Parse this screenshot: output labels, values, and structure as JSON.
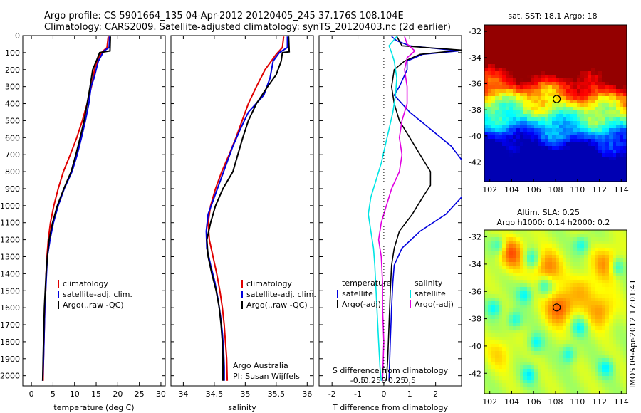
{
  "header": {
    "line1": "Argo profile: CS 5901664_135 04-Apr-2012 20120405_245 37.176S 108.104E",
    "line2": "Climatology: CARS2009. Satellite-adjusted climatology: synTS_20120403.nc (2d earlier)"
  },
  "side_stamp": "IMOS 09-Apr-2012 17:01:41",
  "colors": {
    "climatology": "#e00000",
    "satellite": "#0000dd",
    "argo": "#000000",
    "sal_satellite": "#00e5e5",
    "sal_argo": "#e000e0"
  },
  "chart_data": [
    {
      "type": "line",
      "panel": "temperature",
      "xlabel": "temperature (deg C)",
      "xlim": [
        -2,
        31
      ],
      "ylim": [
        2060,
        0
      ],
      "xticks": [
        "0",
        "5",
        "10",
        "15",
        "20",
        "25",
        "30"
      ],
      "yticks": [
        "0",
        "100",
        "200",
        "300",
        "400",
        "500",
        "600",
        "700",
        "800",
        "900",
        "1000",
        "1100",
        "1200",
        "1300",
        "1400",
        "1500",
        "1600",
        "1700",
        "1800",
        "1900",
        "2000"
      ],
      "legend": [
        "climatology",
        "satellite-adj. clim.",
        "Argo(..raw -QC)"
      ],
      "series": [
        {
          "name": "climatology",
          "color_key": "climatology",
          "points": [
            [
              17.8,
              5
            ],
            [
              17.5,
              70
            ],
            [
              16.2,
              100
            ],
            [
              15.3,
              150
            ],
            [
              14.6,
              200
            ],
            [
              13.9,
              300
            ],
            [
              12.9,
              400
            ],
            [
              11.8,
              500
            ],
            [
              10.5,
              600
            ],
            [
              9.0,
              700
            ],
            [
              7.4,
              800
            ],
            [
              6.2,
              900
            ],
            [
              5.2,
              1000
            ],
            [
              4.4,
              1100
            ],
            [
              3.9,
              1200
            ],
            [
              3.6,
              1300
            ],
            [
              3.4,
              1400
            ],
            [
              3.3,
              1500
            ],
            [
              3.1,
              1600
            ],
            [
              3.0,
              1700
            ],
            [
              2.9,
              1800
            ],
            [
              2.8,
              1900
            ],
            [
              2.7,
              2030
            ]
          ]
        },
        {
          "name": "satellite-adj. clim.",
          "color_key": "satellite",
          "points": [
            [
              18.1,
              5
            ],
            [
              18.0,
              70
            ],
            [
              16.8,
              90
            ],
            [
              15.5,
              150
            ],
            [
              15.0,
              200
            ],
            [
              14.5,
              250
            ],
            [
              13.8,
              300
            ],
            [
              13.3,
              400
            ],
            [
              12.5,
              500
            ],
            [
              11.6,
              600
            ],
            [
              10.6,
              700
            ],
            [
              9.4,
              800
            ],
            [
              7.6,
              900
            ],
            [
              6.2,
              1000
            ],
            [
              5.1,
              1100
            ],
            [
              4.3,
              1200
            ],
            [
              3.7,
              1300
            ],
            [
              3.5,
              1400
            ],
            [
              3.3,
              1500
            ],
            [
              3.1,
              1600
            ],
            [
              3.0,
              1700
            ],
            [
              2.9,
              1800
            ],
            [
              2.8,
              1900
            ],
            [
              2.6,
              2030
            ]
          ]
        },
        {
          "name": "Argo(..raw -QC)",
          "color_key": "argo",
          "points": [
            [
              18.3,
              5
            ],
            [
              18.2,
              90
            ],
            [
              15.8,
              100
            ],
            [
              15.2,
              140
            ],
            [
              14.2,
              200
            ],
            [
              13.6,
              300
            ],
            [
              12.9,
              400
            ],
            [
              12.2,
              500
            ],
            [
              11.3,
              600
            ],
            [
              10.3,
              700
            ],
            [
              9.2,
              800
            ],
            [
              7.5,
              900
            ],
            [
              6.0,
              1000
            ],
            [
              4.9,
              1100
            ],
            [
              4.1,
              1200
            ],
            [
              3.7,
              1300
            ],
            [
              3.4,
              1400
            ],
            [
              3.2,
              1500
            ],
            [
              3.0,
              1600
            ],
            [
              2.9,
              1700
            ],
            [
              2.8,
              1800
            ],
            [
              2.7,
              1900
            ],
            [
              2.6,
              2030
            ]
          ]
        }
      ]
    },
    {
      "type": "line",
      "panel": "salinity",
      "xlabel": "salinity",
      "xlim": [
        33.8,
        36.1
      ],
      "ylim": [
        2060,
        0
      ],
      "xticks": [
        "34",
        "34.5",
        "35",
        "35.5",
        "36"
      ],
      "legend": [
        "climatology",
        "satellite-adj. clim.",
        "Argo(..raw -QC)"
      ],
      "annotation": [
        "Argo Australia",
        "PI: Susan Wijffels"
      ],
      "series": [
        {
          "name": "climatology",
          "color_key": "climatology",
          "points": [
            [
              35.62,
              5
            ],
            [
              35.6,
              70
            ],
            [
              35.5,
              110
            ],
            [
              35.32,
              200
            ],
            [
              35.18,
              300
            ],
            [
              35.05,
              400
            ],
            [
              34.95,
              500
            ],
            [
              34.85,
              600
            ],
            [
              34.74,
              700
            ],
            [
              34.62,
              800
            ],
            [
              34.52,
              900
            ],
            [
              34.44,
              1000
            ],
            [
              34.4,
              1100
            ],
            [
              34.42,
              1200
            ],
            [
              34.48,
              1300
            ],
            [
              34.54,
              1400
            ],
            [
              34.59,
              1500
            ],
            [
              34.63,
              1600
            ],
            [
              34.66,
              1700
            ],
            [
              34.68,
              1800
            ],
            [
              34.7,
              1900
            ],
            [
              34.71,
              2030
            ]
          ]
        },
        {
          "name": "satellite-adj. clim.",
          "color_key": "satellite",
          "points": [
            [
              35.68,
              5
            ],
            [
              35.68,
              70
            ],
            [
              35.55,
              100
            ],
            [
              35.45,
              150
            ],
            [
              35.4,
              250
            ],
            [
              35.3,
              350
            ],
            [
              35.05,
              450
            ],
            [
              34.92,
              550
            ],
            [
              34.8,
              650
            ],
            [
              34.7,
              750
            ],
            [
              34.6,
              850
            ],
            [
              34.5,
              950
            ],
            [
              34.4,
              1050
            ],
            [
              34.37,
              1150
            ],
            [
              34.38,
              1250
            ],
            [
              34.44,
              1350
            ],
            [
              34.51,
              1450
            ],
            [
              34.56,
              1550
            ],
            [
              34.6,
              1650
            ],
            [
              34.63,
              1750
            ],
            [
              34.65,
              1850
            ],
            [
              34.66,
              1950
            ],
            [
              34.66,
              2030
            ]
          ]
        },
        {
          "name": "Argo(..raw -QC)",
          "color_key": "argo",
          "points": [
            [
              35.7,
              5
            ],
            [
              35.71,
              95
            ],
            [
              35.6,
              100
            ],
            [
              35.58,
              150
            ],
            [
              35.5,
              230
            ],
            [
              35.36,
              300
            ],
            [
              35.18,
              400
            ],
            [
              35.05,
              500
            ],
            [
              34.96,
              600
            ],
            [
              34.88,
              700
            ],
            [
              34.8,
              800
            ],
            [
              34.64,
              900
            ],
            [
              34.52,
              1000
            ],
            [
              34.44,
              1100
            ],
            [
              34.38,
              1200
            ],
            [
              34.4,
              1300
            ],
            [
              34.46,
              1400
            ],
            [
              34.53,
              1500
            ],
            [
              34.58,
              1600
            ],
            [
              34.61,
              1700
            ],
            [
              34.63,
              1800
            ],
            [
              34.64,
              1900
            ],
            [
              34.64,
              2030
            ]
          ]
        }
      ]
    },
    {
      "type": "line",
      "panel": "differences",
      "xlabel": "T difference from climatology",
      "top_label": "S difference from climatology",
      "xlim": [
        -2.5,
        3
      ],
      "ylim": [
        2060,
        0
      ],
      "xticks": [
        "-2",
        "-1",
        "0",
        "1",
        "2"
      ],
      "s_xticks": [
        "-0.5",
        "-0.25",
        "0",
        "0.25",
        "0.5"
      ],
      "legend_temperature": {
        "heading": "temperature",
        "items": [
          "satellite",
          "Argo(-adj)"
        ]
      },
      "legend_salinity": {
        "heading": "salinity",
        "items": [
          "satellite",
          "Argo(-adj)"
        ]
      },
      "series": [
        {
          "name": "temperature satellite",
          "color_key": "satellite",
          "points": [
            [
              0.3,
              5
            ],
            [
              0.5,
              30
            ],
            [
              1.0,
              60
            ],
            [
              2.9,
              90
            ],
            [
              1.5,
              110
            ],
            [
              0.9,
              150
            ],
            [
              0.9,
              200
            ],
            [
              0.6,
              300
            ],
            [
              0.4,
              350
            ],
            [
              1.0,
              450
            ],
            [
              1.8,
              550
            ],
            [
              2.6,
              650
            ],
            [
              3.1,
              750
            ],
            [
              3.3,
              850
            ],
            [
              3.0,
              950
            ],
            [
              2.4,
              1050
            ],
            [
              1.4,
              1150
            ],
            [
              0.7,
              1250
            ],
            [
              0.4,
              1350
            ],
            [
              0.35,
              1450
            ],
            [
              0.3,
              1600
            ],
            [
              0.25,
              1800
            ],
            [
              0.2,
              2030
            ]
          ]
        },
        {
          "name": "temperature Argo(-adj)",
          "color_key": "argo",
          "points": [
            [
              0.5,
              5
            ],
            [
              0.7,
              60
            ],
            [
              3.0,
              85
            ],
            [
              1.4,
              110
            ],
            [
              0.8,
              150
            ],
            [
              0.4,
              200
            ],
            [
              0.3,
              300
            ],
            [
              0.4,
              400
            ],
            [
              0.6,
              500
            ],
            [
              1.0,
              600
            ],
            [
              1.4,
              700
            ],
            [
              1.8,
              800
            ],
            [
              1.8,
              880
            ],
            [
              1.5,
              950
            ],
            [
              1.1,
              1050
            ],
            [
              0.6,
              1150
            ],
            [
              0.4,
              1250
            ],
            [
              0.3,
              1350
            ],
            [
              0.25,
              1500
            ],
            [
              0.2,
              1700
            ],
            [
              0.15,
              1900
            ],
            [
              0.1,
              2030
            ]
          ]
        },
        {
          "name": "salinity satellite",
          "color_key": "sal_satellite",
          "points": [
            [
              0.5,
              5
            ],
            [
              0.2,
              60
            ],
            [
              0.3,
              100
            ],
            [
              0.4,
              150
            ],
            [
              0.5,
              250
            ],
            [
              0.45,
              350
            ],
            [
              0.35,
              450
            ],
            [
              0.2,
              550
            ],
            [
              0.05,
              650
            ],
            [
              -0.1,
              750
            ],
            [
              -0.3,
              850
            ],
            [
              -0.5,
              950
            ],
            [
              -0.6,
              1050
            ],
            [
              -0.5,
              1150
            ],
            [
              -0.4,
              1250
            ],
            [
              -0.35,
              1350
            ],
            [
              -0.3,
              1500
            ],
            [
              -0.25,
              1650
            ],
            [
              -0.2,
              1800
            ],
            [
              -0.15,
              1950
            ],
            [
              -0.1,
              2030
            ]
          ]
        },
        {
          "name": "salinity Argo(-adj)",
          "color_key": "sal_argo",
          "points": [
            [
              0.8,
              5
            ],
            [
              0.9,
              50
            ],
            [
              1.2,
              90
            ],
            [
              0.9,
              130
            ],
            [
              0.8,
              200
            ],
            [
              0.9,
              300
            ],
            [
              0.9,
              400
            ],
            [
              0.7,
              500
            ],
            [
              0.6,
              600
            ],
            [
              0.7,
              700
            ],
            [
              0.6,
              800
            ],
            [
              0.3,
              900
            ],
            [
              0.1,
              1000
            ],
            [
              -0.1,
              1100
            ],
            [
              -0.2,
              1200
            ],
            [
              -0.1,
              1300
            ],
            [
              -0.05,
              1450
            ],
            [
              -0.05,
              1600
            ],
            [
              0.0,
              1800
            ],
            [
              -0.05,
              2030
            ]
          ]
        }
      ]
    },
    {
      "type": "heatmap",
      "panel": "sst_map",
      "title": "sat. SST: 18.1 Argo: 18",
      "xlim": [
        101.5,
        114.5
      ],
      "ylim": [
        -43.5,
        -31.5
      ],
      "xticks": [
        "102",
        "104",
        "106",
        "108",
        "110",
        "112",
        "114"
      ],
      "yticks": [
        "-32",
        "-34",
        "-36",
        "-38",
        "-40",
        "-42"
      ],
      "marker": {
        "lon": 108.104,
        "lat": -37.176
      }
    },
    {
      "type": "heatmap",
      "panel": "sla_map",
      "title": "Altim. SLA: 0.25",
      "subtitle": "Argo h1000: 0.14 h2000: 0.2",
      "xlim": [
        101.5,
        114.5
      ],
      "ylim": [
        -43.5,
        -31.5
      ],
      "xticks": [
        "102",
        "104",
        "106",
        "108",
        "110",
        "112",
        "114"
      ],
      "yticks": [
        "-32",
        "-34",
        "-36",
        "-38",
        "-40",
        "-42"
      ],
      "marker": {
        "lon": 108.104,
        "lat": -37.176
      }
    }
  ]
}
